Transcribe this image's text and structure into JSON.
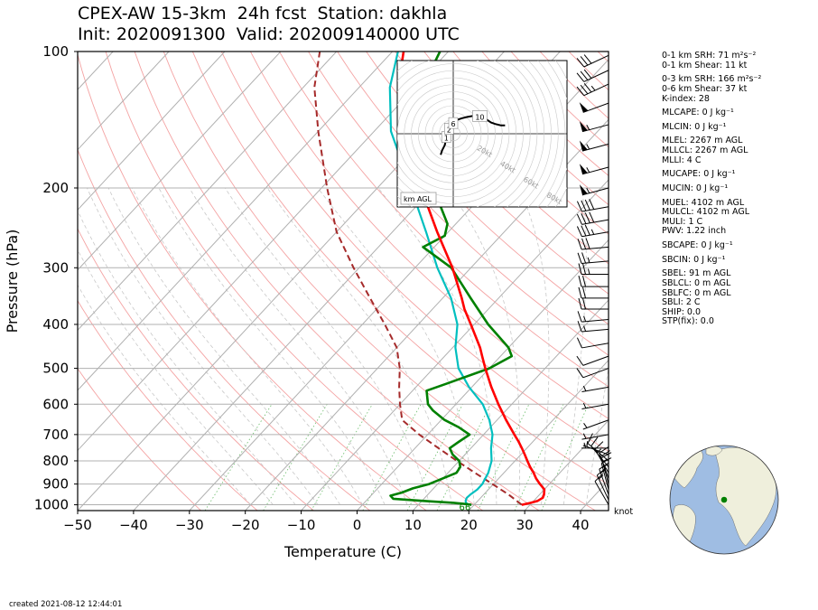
{
  "title": {
    "line1": "CPEX-AW 15-3km  24h fcst  Station: dakhla",
    "line2": "Init: 2020091300  Valid: 202009140000 UTC"
  },
  "footer": {
    "created": "created 2021-08-12 12:44:01"
  },
  "indices": [
    "0-1 km SRH: 71 m²s⁻²",
    "0-1 km Shear: 11 kt",
    "0-3 km SRH: 166 m²s⁻²",
    "0-6 km Shear: 37 kt",
    "K-index: 28",
    "MLCAPE: 0 J kg⁻¹",
    "MLCIN: 0 J kg⁻¹",
    "MLEL: 2267 m AGL",
    "MLLCL: 2267 m AGL",
    "MLLI: 4 C",
    "MUCAPE: 0 J kg⁻¹",
    "MUCIN: 0 J kg⁻¹",
    "MUEL: 4102 m AGL",
    "MULCL: 4102 m AGL",
    "MULI: 1 C",
    "PWV: 1.22 inch",
    "SBCAPE: 0 J kg⁻¹",
    "SBCIN: 0 J kg⁻¹",
    "SBEL: 91 m AGL",
    "SBLCL: 0 m AGL",
    "SBLFC: 0 m AGL",
    "SBLI: 2 C",
    "SHIP: 0.0",
    "STP(fix): 0.0"
  ],
  "colors": {
    "temperature": "#ff0000",
    "dewpoint": "#008000",
    "wetbulb": "#00bfbf",
    "parcel": "#a52a2a",
    "isotherm": "#b0b0b0",
    "dry_adiabat": "#f4a3a3",
    "moist_adiabat": "#c8c8c8",
    "mixing_ratio": "#2ca02c",
    "globe_ocean": "#9fbde3",
    "globe_land": "#efefdc",
    "station_marker": "#008000"
  },
  "chart_data": {
    "type": "line",
    "subtype": "skew-T log-p",
    "xlabel": "Temperature (C)",
    "ylabel": "Pressure (hPa)",
    "xlim": [
      -50,
      45
    ],
    "ylim": [
      1030,
      100
    ],
    "y_scale": "log",
    "x_ticks": [
      -50,
      -40,
      -30,
      -20,
      -10,
      0,
      10,
      20,
      30,
      40
    ],
    "y_ticks": [
      100,
      200,
      300,
      400,
      500,
      600,
      700,
      800,
      900,
      1000
    ],
    "grid": true,
    "series": [
      {
        "key": "temperature",
        "points": [
          [
            1000,
            28.5
          ],
          [
            990,
            29.8
          ],
          [
            980,
            30.7
          ],
          [
            965,
            31.1
          ],
          [
            950,
            30.8
          ],
          [
            925,
            30.0
          ],
          [
            900,
            28.3
          ],
          [
            875,
            26.7
          ],
          [
            850,
            25.3
          ],
          [
            825,
            23.7
          ],
          [
            800,
            22.2
          ],
          [
            775,
            20.7
          ],
          [
            750,
            19.1
          ],
          [
            725,
            17.4
          ],
          [
            700,
            15.5
          ],
          [
            650,
            11.6
          ],
          [
            600,
            7.6
          ],
          [
            550,
            3.5
          ],
          [
            500,
            -0.7
          ],
          [
            470,
            -3.3
          ],
          [
            450,
            -5.1
          ],
          [
            400,
            -10.6
          ],
          [
            370,
            -14.3
          ],
          [
            350,
            -16.6
          ],
          [
            300,
            -23.3
          ],
          [
            250,
            -32.0
          ],
          [
            200,
            -42.2
          ],
          [
            175,
            -48.5
          ],
          [
            150,
            -55.0
          ],
          [
            120,
            -63.0
          ],
          [
            100,
            -68.0
          ]
        ]
      },
      {
        "key": "wetbulb",
        "points": [
          [
            1000,
            19.0
          ],
          [
            990,
            18.2
          ],
          [
            980,
            17.8
          ],
          [
            965,
            17.5
          ],
          [
            950,
            17.6
          ],
          [
            925,
            18.0
          ],
          [
            900,
            18.0
          ],
          [
            850,
            17.2
          ],
          [
            800,
            15.8
          ],
          [
            750,
            13.6
          ],
          [
            700,
            11.6
          ],
          [
            650,
            8.6
          ],
          [
            600,
            4.8
          ],
          [
            550,
            -0.5
          ],
          [
            500,
            -5.5
          ],
          [
            450,
            -9.5
          ],
          [
            400,
            -13.0
          ],
          [
            350,
            -18.5
          ],
          [
            300,
            -26.0
          ],
          [
            250,
            -34.0
          ],
          [
            200,
            -44.0
          ],
          [
            150,
            -57.0
          ],
          [
            120,
            -64.5
          ],
          [
            100,
            -69.0
          ]
        ]
      },
      {
        "key": "dewpoint",
        "points": [
          [
            1000,
            19.5
          ],
          [
            995,
            18.0
          ],
          [
            990,
            16.0
          ],
          [
            980,
            10.0
          ],
          [
            970,
            4.5
          ],
          [
            955,
            3.5
          ],
          [
            940,
            5.0
          ],
          [
            920,
            6.3
          ],
          [
            900,
            8.5
          ],
          [
            850,
            11.5
          ],
          [
            825,
            11.2
          ],
          [
            800,
            10.0
          ],
          [
            775,
            7.8
          ],
          [
            750,
            6.2
          ],
          [
            725,
            6.8
          ],
          [
            700,
            7.5
          ],
          [
            675,
            4.4
          ],
          [
            650,
            0.6
          ],
          [
            620,
            -3.0
          ],
          [
            600,
            -5.0
          ],
          [
            560,
            -7.5
          ],
          [
            540,
            -5.0
          ],
          [
            500,
            0.0
          ],
          [
            470,
            2.0
          ],
          [
            450,
            0.0
          ],
          [
            400,
            -7.5
          ],
          [
            350,
            -15.0
          ],
          [
            300,
            -23.5
          ],
          [
            270,
            -32.0
          ],
          [
            255,
            -30.0
          ],
          [
            240,
            -31.5
          ],
          [
            200,
            -40.0
          ],
          [
            170,
            -47.0
          ],
          [
            150,
            -52.0
          ],
          [
            135,
            -54.5
          ],
          [
            120,
            -57.5
          ],
          [
            110,
            -60.0
          ],
          [
            100,
            -61.5
          ]
        ]
      },
      {
        "key": "parcel",
        "points": [
          [
            1000,
            28.5
          ],
          [
            950,
            24.5
          ],
          [
            900,
            19.8
          ],
          [
            850,
            14.8
          ],
          [
            800,
            9.6
          ],
          [
            750,
            4.2
          ],
          [
            700,
            -1.5
          ],
          [
            650,
            -7.0
          ],
          [
            600,
            -10.0
          ],
          [
            550,
            -13.0
          ],
          [
            500,
            -16.0
          ],
          [
            450,
            -20.0
          ],
          [
            400,
            -26.0
          ],
          [
            350,
            -33.0
          ],
          [
            300,
            -41.0
          ],
          [
            250,
            -50.0
          ],
          [
            200,
            -59.0
          ],
          [
            150,
            -70.0
          ],
          [
            120,
            -78.0
          ],
          [
            100,
            -83.0
          ]
        ]
      }
    ],
    "annotations": [
      {
        "text": "66",
        "pressure": 1018,
        "temperature": 19.5
      }
    ],
    "wind_units": "knot",
    "wind_barbs": [
      {
        "p": 1000,
        "spd": 12,
        "dir": 330
      },
      {
        "p": 975,
        "spd": 13,
        "dir": 335
      },
      {
        "p": 950,
        "spd": 14,
        "dir": 340
      },
      {
        "p": 925,
        "spd": 16,
        "dir": 345
      },
      {
        "p": 900,
        "spd": 17,
        "dir": 345
      },
      {
        "p": 875,
        "spd": 18,
        "dir": 340
      },
      {
        "p": 850,
        "spd": 16,
        "dir": 330
      },
      {
        "p": 825,
        "spd": 12,
        "dir": 320
      },
      {
        "p": 800,
        "spd": 8,
        "dir": 310
      },
      {
        "p": 775,
        "spd": 6,
        "dir": 290
      },
      {
        "p": 750,
        "spd": 5,
        "dir": 270
      },
      {
        "p": 700,
        "spd": 5,
        "dir": 260
      },
      {
        "p": 650,
        "spd": 5,
        "dir": 250
      },
      {
        "p": 600,
        "spd": 4,
        "dir": 260
      },
      {
        "p": 550,
        "spd": 4,
        "dir": 260
      },
      {
        "p": 500,
        "spd": 8,
        "dir": 250
      },
      {
        "p": 470,
        "spd": 10,
        "dir": 250
      },
      {
        "p": 440,
        "spd": 12,
        "dir": 260
      },
      {
        "p": 410,
        "spd": 14,
        "dir": 265
      },
      {
        "p": 390,
        "spd": 16,
        "dir": 265
      },
      {
        "p": 370,
        "spd": 18,
        "dir": 270
      },
      {
        "p": 350,
        "spd": 20,
        "dir": 270
      },
      {
        "p": 330,
        "spd": 22,
        "dir": 270
      },
      {
        "p": 310,
        "spd": 25,
        "dir": 270
      },
      {
        "p": 290,
        "spd": 25,
        "dir": 265
      },
      {
        "p": 270,
        "spd": 30,
        "dir": 265
      },
      {
        "p": 250,
        "spd": 35,
        "dir": 260
      },
      {
        "p": 235,
        "spd": 40,
        "dir": 260
      },
      {
        "p": 220,
        "spd": 40,
        "dir": 260
      },
      {
        "p": 200,
        "spd": 55,
        "dir": 255
      },
      {
        "p": 180,
        "spd": 55,
        "dir": 255
      },
      {
        "p": 160,
        "spd": 55,
        "dir": 255
      },
      {
        "p": 145,
        "spd": 55,
        "dir": 255
      },
      {
        "p": 130,
        "spd": 50,
        "dir": 250
      },
      {
        "p": 118,
        "spd": 35,
        "dir": 245
      },
      {
        "p": 110,
        "spd": 30,
        "dir": 245
      },
      {
        "p": 102,
        "spd": 30,
        "dir": 245
      }
    ],
    "hodograph": {
      "speed_rings_kt": [
        20,
        40,
        60,
        80
      ],
      "ring_labels": [
        "20kt",
        "40kt",
        "60kt",
        "80kt"
      ],
      "legend": "km AGL",
      "height_labels": [
        {
          "text": "1",
          "u": -5,
          "v": -3
        },
        {
          "text": "2",
          "u": -3,
          "v": 3
        },
        {
          "text": "6",
          "u": 0,
          "v": 7
        },
        {
          "text": "10",
          "u": 19,
          "v": 12
        }
      ],
      "trace_uv": [
        [
          -9,
          -15
        ],
        [
          -8,
          -12
        ],
        [
          -6,
          -8
        ],
        [
          -5,
          -3
        ],
        [
          -4,
          1
        ],
        [
          -2,
          4
        ],
        [
          0,
          7
        ],
        [
          1,
          9
        ],
        [
          3,
          10
        ],
        [
          6,
          11
        ],
        [
          10,
          12
        ],
        [
          16,
          13
        ],
        [
          20,
          13
        ],
        [
          22,
          12
        ],
        [
          24,
          10
        ],
        [
          27,
          8
        ],
        [
          30,
          7
        ],
        [
          34,
          6
        ],
        [
          37,
          6
        ]
      ]
    },
    "globe": {
      "marker_lat": 23.7,
      "marker_lon": -15.9
    }
  }
}
